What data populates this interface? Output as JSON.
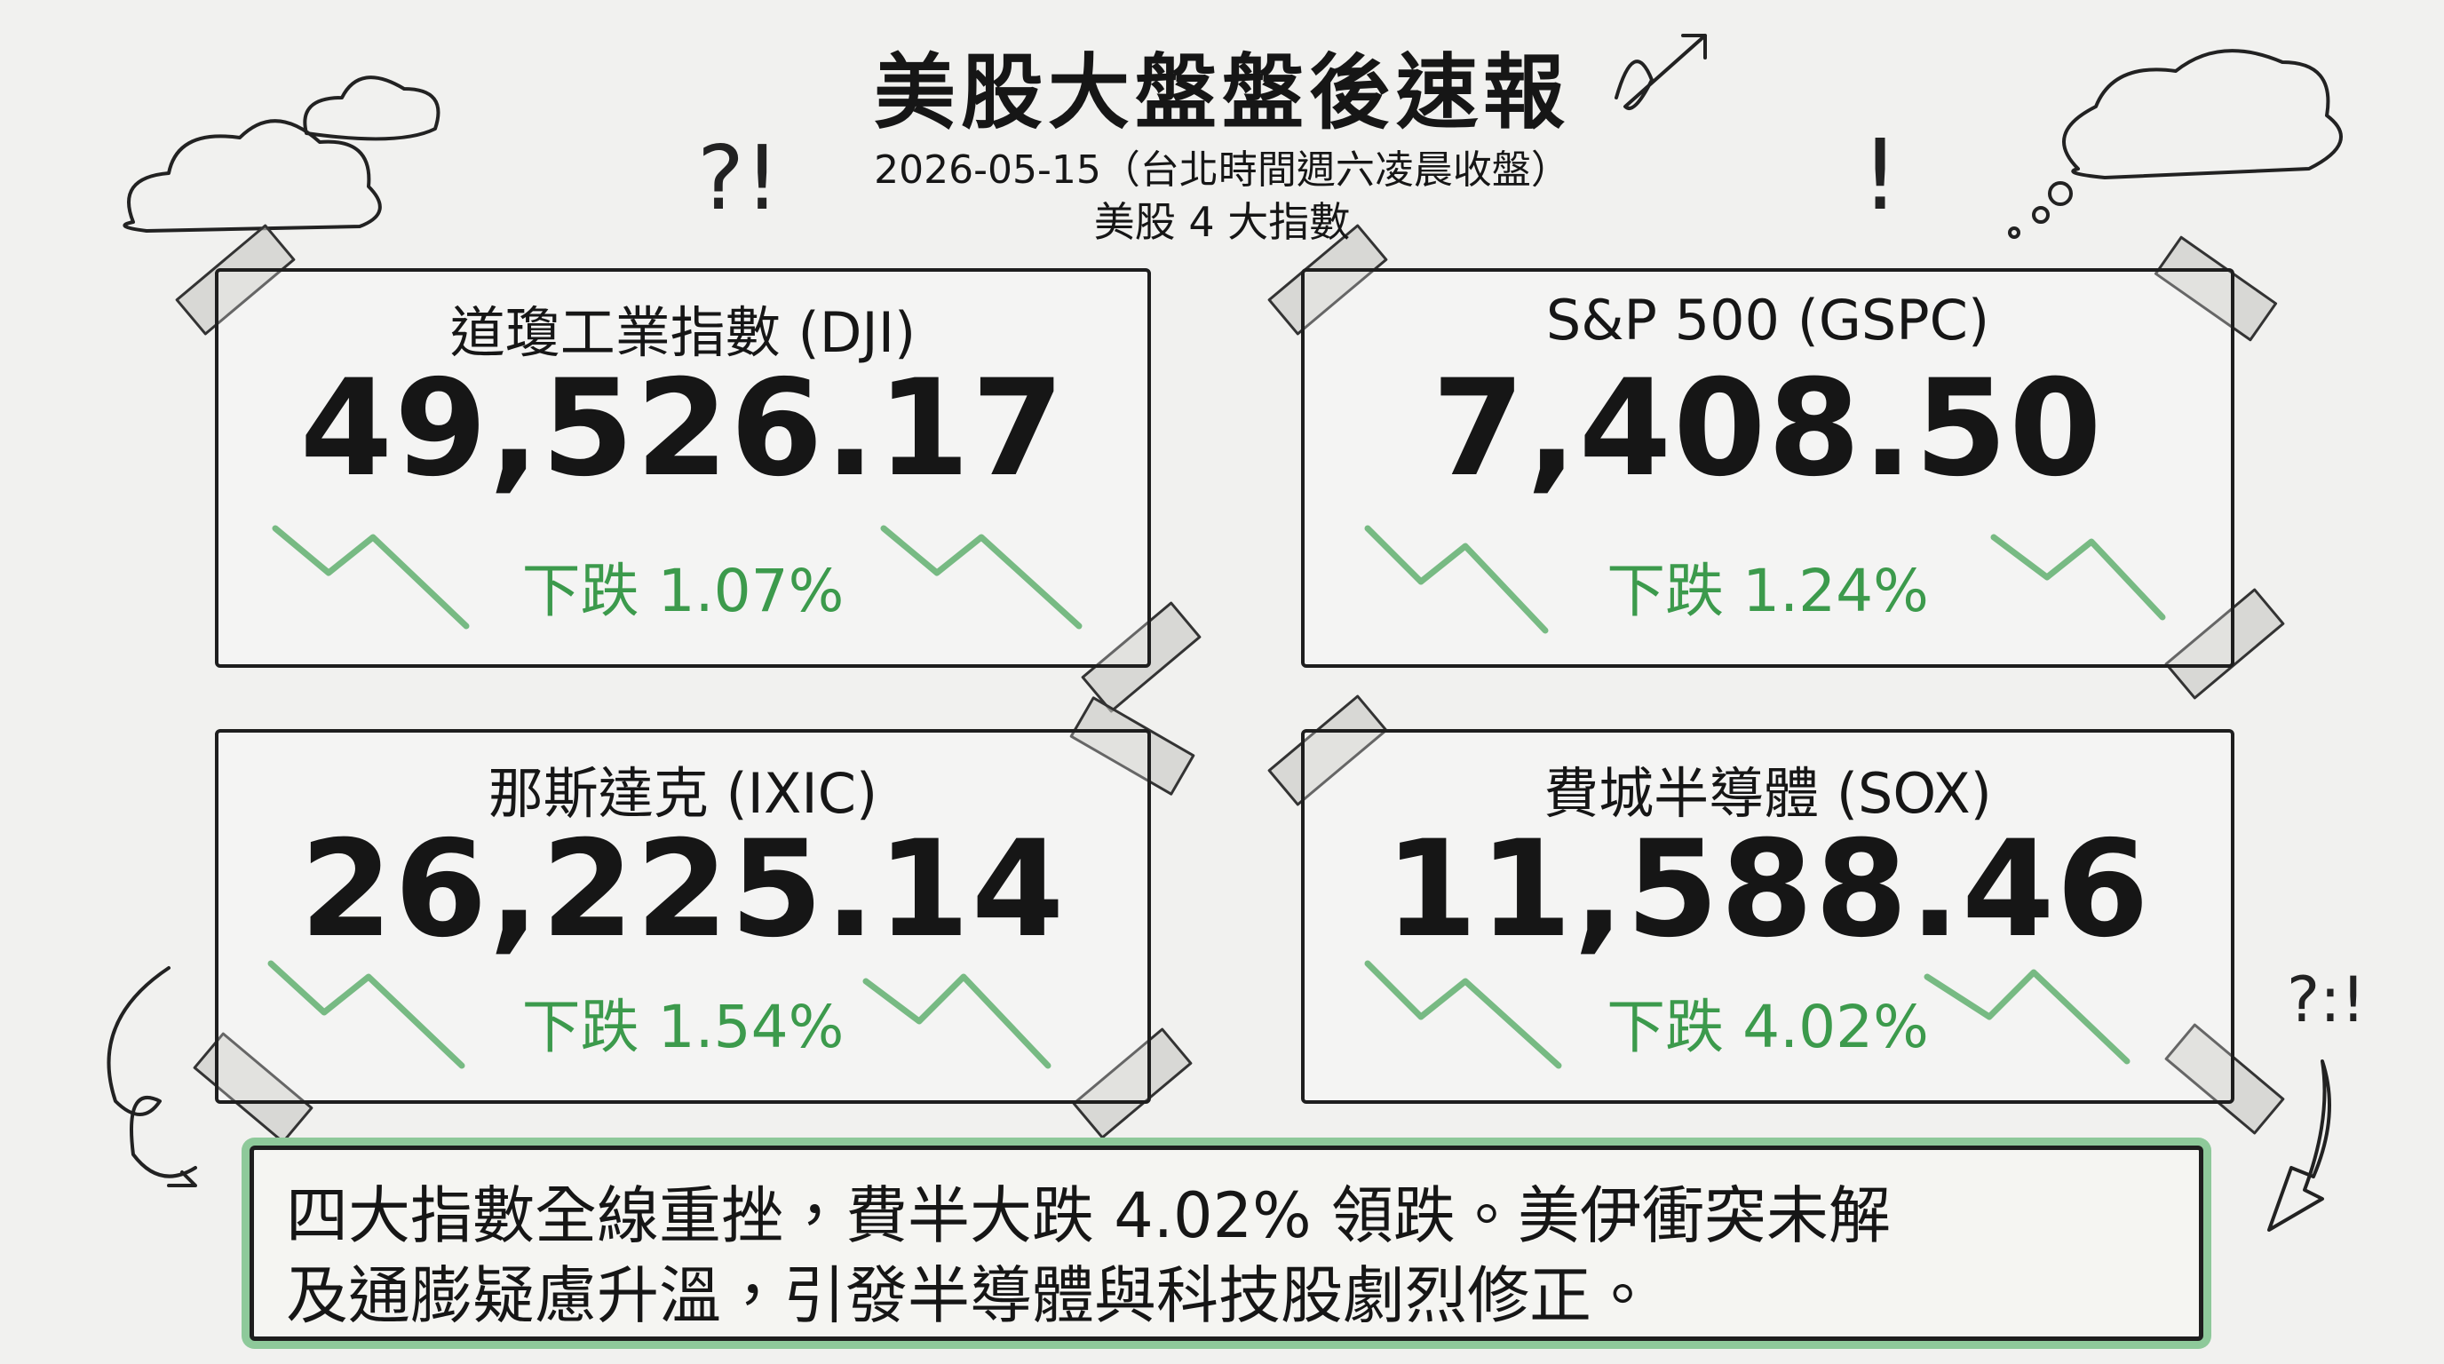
{
  "header": {
    "title": "美股大盤盤後速報",
    "date": "2026-05-15（台北時間週六凌晨收盤）",
    "subtitle": "美股 4 大指數"
  },
  "cards": [
    {
      "name": "道瓊工業指數 (DJI)",
      "value": "49,526.17",
      "change": "下跌 1.07%"
    },
    {
      "name": "S&P 500 (GSPC)",
      "value": "7,408.50",
      "change": "下跌 1.24%"
    },
    {
      "name": "那斯達克 (IXIC)",
      "value": "26,225.14",
      "change": "下跌 1.54%"
    },
    {
      "name": "費城半導體 (SOX)",
      "value": "11,588.46",
      "change": "下跌 4.02%"
    }
  ],
  "summary": {
    "lines": [
      "四大指數全線重挫，費半大跌 4.02% 領跌。美伊衝突未解",
      "及通膨疑慮升溫，引發半導體與科技股劇烈修正。"
    ]
  }
}
